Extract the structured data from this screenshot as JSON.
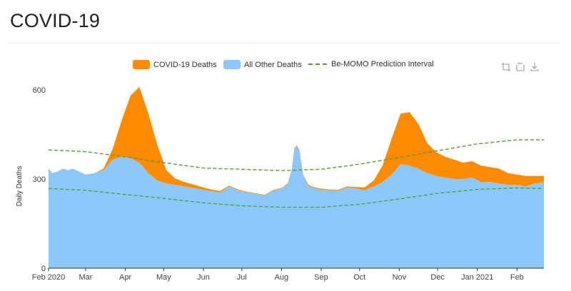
{
  "page": {
    "title": "COVID-19"
  },
  "toolbox": {
    "icons": [
      "zoom-icon",
      "zoom-reset-icon",
      "download-icon"
    ]
  },
  "colors": {
    "covid": "#ff8c00",
    "other": "#8cc8fc",
    "band": "#5c9a3c",
    "bg": "#ffffff"
  },
  "chart_data": {
    "type": "area",
    "title": "",
    "xlabel": "",
    "ylabel": "Daily Deaths",
    "ylim": [
      0,
      600
    ],
    "y_ticks": [
      0,
      300,
      600
    ],
    "x_tick_labels": [
      "Feb 2020",
      "Mar",
      "Apr",
      "May",
      "Jun",
      "Jul",
      "Aug",
      "Sep",
      "Oct",
      "Nov",
      "Dec",
      "Jan 2021",
      "Feb"
    ],
    "x_tick_dates": [
      "2020-02-01",
      "2020-03-01",
      "2020-04-01",
      "2020-05-01",
      "2020-06-01",
      "2020-07-01",
      "2020-08-01",
      "2020-09-01",
      "2020-10-01",
      "2020-11-01",
      "2020-12-01",
      "2021-01-01",
      "2021-02-01"
    ],
    "legend_position": "top",
    "grid": false,
    "series": [
      {
        "name": "All Other Deaths",
        "style": "stacked-area",
        "x": [
          "2020-02-01",
          "2020-02-04",
          "2020-02-08",
          "2020-02-12",
          "2020-02-16",
          "2020-02-20",
          "2020-02-25",
          "2020-03-01",
          "2020-03-08",
          "2020-03-15",
          "2020-03-22",
          "2020-03-29",
          "2020-04-05",
          "2020-04-12",
          "2020-04-19",
          "2020-04-26",
          "2020-05-03",
          "2020-05-10",
          "2020-05-17",
          "2020-05-24",
          "2020-05-31",
          "2020-06-07",
          "2020-06-14",
          "2020-06-21",
          "2020-06-28",
          "2020-07-05",
          "2020-07-12",
          "2020-07-19",
          "2020-07-26",
          "2020-08-02",
          "2020-08-06",
          "2020-08-09",
          "2020-08-11",
          "2020-08-13",
          "2020-08-15",
          "2020-08-18",
          "2020-08-22",
          "2020-08-26",
          "2020-08-31",
          "2020-09-07",
          "2020-09-14",
          "2020-09-21",
          "2020-09-28",
          "2020-10-05",
          "2020-10-12",
          "2020-10-19",
          "2020-10-26",
          "2020-11-02",
          "2020-11-09",
          "2020-11-16",
          "2020-11-23",
          "2020-11-30",
          "2020-12-07",
          "2020-12-14",
          "2020-12-21",
          "2020-12-28",
          "2021-01-04",
          "2021-01-11",
          "2021-01-18",
          "2021-01-25",
          "2021-02-01",
          "2021-02-08",
          "2021-02-15",
          "2021-02-22"
        ],
        "values": [
          335,
          320,
          325,
          335,
          330,
          335,
          325,
          315,
          320,
          330,
          365,
          375,
          370,
          355,
          320,
          295,
          285,
          280,
          275,
          270,
          265,
          260,
          255,
          275,
          262,
          255,
          250,
          245,
          262,
          270,
          285,
          330,
          400,
          410,
          395,
          310,
          278,
          270,
          265,
          262,
          260,
          272,
          268,
          262,
          275,
          290,
          315,
          350,
          345,
          335,
          320,
          310,
          305,
          300,
          300,
          305,
          290,
          290,
          285,
          280,
          280,
          275,
          285,
          290
        ]
      },
      {
        "name": "COVID-19 Deaths",
        "style": "stacked-area",
        "x": [
          "2020-02-01",
          "2020-02-04",
          "2020-02-08",
          "2020-02-12",
          "2020-02-16",
          "2020-02-20",
          "2020-02-25",
          "2020-03-01",
          "2020-03-08",
          "2020-03-15",
          "2020-03-22",
          "2020-03-29",
          "2020-04-05",
          "2020-04-12",
          "2020-04-19",
          "2020-04-26",
          "2020-05-03",
          "2020-05-10",
          "2020-05-17",
          "2020-05-24",
          "2020-05-31",
          "2020-06-07",
          "2020-06-14",
          "2020-06-21",
          "2020-06-28",
          "2020-07-05",
          "2020-07-12",
          "2020-07-19",
          "2020-07-26",
          "2020-08-02",
          "2020-08-06",
          "2020-08-09",
          "2020-08-11",
          "2020-08-13",
          "2020-08-15",
          "2020-08-18",
          "2020-08-22",
          "2020-08-26",
          "2020-08-31",
          "2020-09-07",
          "2020-09-14",
          "2020-09-21",
          "2020-09-28",
          "2020-10-05",
          "2020-10-12",
          "2020-10-19",
          "2020-10-26",
          "2020-11-02",
          "2020-11-09",
          "2020-11-16",
          "2020-11-23",
          "2020-11-30",
          "2020-12-07",
          "2020-12-14",
          "2020-12-21",
          "2020-12-28",
          "2021-01-04",
          "2021-01-11",
          "2021-01-18",
          "2021-01-25",
          "2021-02-01",
          "2021-02-08",
          "2021-02-15",
          "2021-02-22"
        ],
        "values": [
          0,
          0,
          0,
          0,
          0,
          0,
          0,
          0,
          0,
          5,
          35,
          120,
          210,
          255,
          200,
          120,
          45,
          22,
          15,
          12,
          8,
          5,
          5,
          3,
          3,
          2,
          2,
          2,
          2,
          2,
          2,
          2,
          3,
          3,
          3,
          3,
          3,
          3,
          3,
          3,
          3,
          3,
          5,
          10,
          20,
          55,
          120,
          170,
          180,
          150,
          100,
          80,
          70,
          65,
          55,
          55,
          55,
          50,
          50,
          40,
          35,
          35,
          25,
          20
        ]
      },
      {
        "name": "Be-MOMO Prediction Interval",
        "style": "dashed-band",
        "x": [
          "2020-02-01",
          "2020-03-01",
          "2020-04-01",
          "2020-05-01",
          "2020-06-01",
          "2020-07-01",
          "2020-08-01",
          "2020-09-01",
          "2020-10-01",
          "2020-11-01",
          "2020-12-01",
          "2021-01-01",
          "2021-02-01",
          "2021-02-22"
        ],
        "upper": [
          398,
          392,
          375,
          355,
          337,
          333,
          328,
          333,
          350,
          373,
          395,
          418,
          432,
          432
        ],
        "lower": [
          268,
          262,
          248,
          235,
          220,
          210,
          205,
          205,
          215,
          233,
          252,
          265,
          270,
          268
        ]
      }
    ]
  }
}
